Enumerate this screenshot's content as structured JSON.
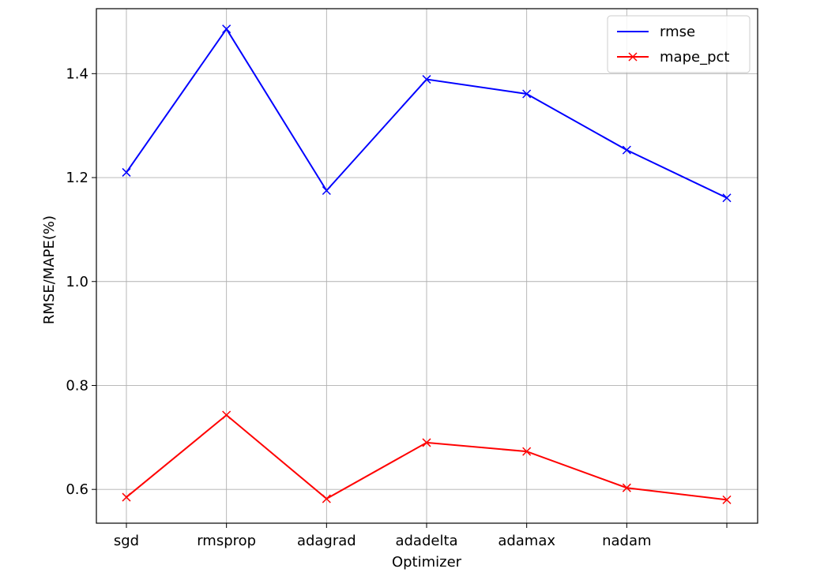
{
  "chart_data": {
    "type": "line",
    "xlabel": "Optimizer",
    "ylabel": "RMSE/MAPE(%)",
    "categories": [
      "sgd",
      "rmsprop",
      "adagrad",
      "adadelta",
      "adamax",
      "nadam",
      ""
    ],
    "y_ticks": [
      0.6,
      0.8,
      1.0,
      1.2,
      1.4
    ],
    "y_tick_labels": [
      "0.6",
      "0.8",
      "1.0",
      "1.2",
      "1.4"
    ],
    "ylim": [
      0.535,
      1.525
    ],
    "grid": true,
    "legend_position": "top-right",
    "series": [
      {
        "name": "rmse",
        "color": "#0000ff",
        "marker": "x",
        "values": [
          1.21,
          1.486,
          1.175,
          1.389,
          1.361,
          1.253,
          1.161
        ]
      },
      {
        "name": "mape_pct",
        "color": "#ff0000",
        "marker": "x",
        "values": [
          0.585,
          0.743,
          0.582,
          0.69,
          0.673,
          0.603,
          0.58
        ]
      }
    ]
  }
}
